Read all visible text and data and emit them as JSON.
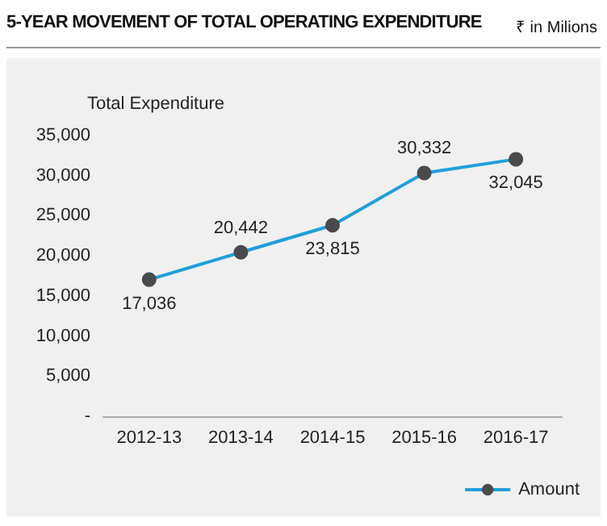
{
  "chart_data": {
    "type": "line",
    "title": "5-YEAR MOVEMENT OF TOTAL OPERATING EXPENDITURE",
    "annotations": [
      "₹ in Milions"
    ],
    "ylabel": "Total Expenditure",
    "categories": [
      "2012-13",
      "2013-14",
      "2014-15",
      "2015-16",
      "2016-17"
    ],
    "series": [
      {
        "name": "Amount",
        "color": "#1e9fdc",
        "values": [
          17036,
          20442,
          23815,
          30332,
          32045
        ],
        "value_labels": [
          "17,036",
          "20,442",
          "23,815",
          "30,332",
          "32,045"
        ]
      }
    ],
    "ylim": [
      0,
      35000
    ],
    "yticks": [
      {
        "value": 0,
        "label": "-"
      },
      {
        "value": 5000,
        "label": "5,000"
      },
      {
        "value": 10000,
        "label": "10,000"
      },
      {
        "value": 15000,
        "label": "15,000"
      },
      {
        "value": 20000,
        "label": "20,000"
      },
      {
        "value": 25000,
        "label": "25,000"
      },
      {
        "value": 30000,
        "label": "30,000"
      },
      {
        "value": 35000,
        "label": "35,000"
      }
    ],
    "grid": false,
    "legend": "bottom right",
    "marker": "circle"
  }
}
